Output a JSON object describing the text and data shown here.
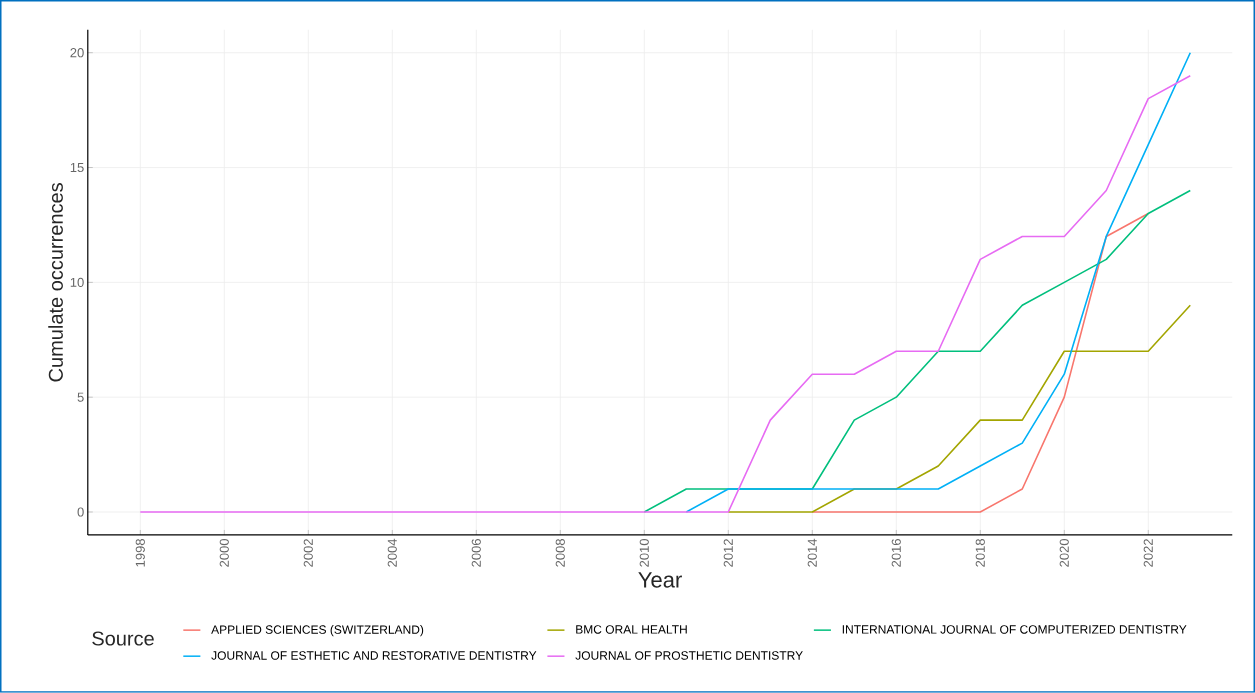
{
  "chart_data": {
    "type": "line",
    "xlabel": "Year",
    "ylabel": "Cumulate occurrences",
    "legend_title": "Source",
    "legend": "bottom",
    "grid": true,
    "x": [
      1998,
      1999,
      2000,
      2001,
      2002,
      2003,
      2004,
      2005,
      2006,
      2007,
      2008,
      2009,
      2010,
      2011,
      2012,
      2013,
      2014,
      2015,
      2016,
      2017,
      2018,
      2019,
      2020,
      2021,
      2022,
      2023
    ],
    "xlim": [
      1996.75,
      2024.0
    ],
    "ylim": [
      -1,
      21
    ],
    "xticks": [
      1998,
      2000,
      2002,
      2004,
      2006,
      2008,
      2010,
      2012,
      2014,
      2016,
      2018,
      2020,
      2022
    ],
    "yticks": [
      0,
      5,
      10,
      15,
      20
    ],
    "series": [
      {
        "name": "APPLIED SCIENCES (SWITZERLAND)",
        "color": "#f8766d",
        "values": [
          null,
          null,
          null,
          null,
          null,
          null,
          null,
          null,
          null,
          null,
          null,
          null,
          null,
          null,
          null,
          null,
          0,
          0,
          0,
          0,
          0,
          1,
          5,
          12,
          13,
          null
        ]
      },
      {
        "name": "BMC ORAL HEALTH",
        "color": "#a3a500",
        "values": [
          null,
          null,
          null,
          null,
          null,
          null,
          null,
          null,
          null,
          null,
          null,
          null,
          null,
          null,
          0,
          0,
          0,
          1,
          1,
          2,
          4,
          4,
          7,
          7,
          7,
          9
        ]
      },
      {
        "name": "INTERNATIONAL JOURNAL OF COMPUTERIZED DENTISTRY",
        "color": "#00bf7d",
        "values": [
          null,
          null,
          null,
          null,
          null,
          null,
          null,
          null,
          null,
          null,
          null,
          null,
          0,
          1,
          1,
          1,
          1,
          4,
          5,
          7,
          7,
          9,
          10,
          11,
          13,
          14
        ]
      },
      {
        "name": "JOURNAL OF ESTHETIC AND RESTORATIVE DENTISTRY",
        "color": "#00b0f6",
        "values": [
          null,
          null,
          null,
          null,
          null,
          null,
          null,
          null,
          null,
          null,
          null,
          null,
          null,
          0,
          1,
          1,
          1,
          1,
          1,
          1,
          2,
          3,
          6,
          12,
          16,
          20
        ]
      },
      {
        "name": "JOURNAL OF PROSTHETIC DENTISTRY",
        "color": "#e76bf3",
        "values": [
          0,
          0,
          0,
          0,
          0,
          0,
          0,
          0,
          0,
          0,
          0,
          0,
          0,
          0,
          0,
          4,
          6,
          6,
          7,
          7,
          11,
          12,
          12,
          14,
          18,
          19
        ]
      }
    ]
  }
}
